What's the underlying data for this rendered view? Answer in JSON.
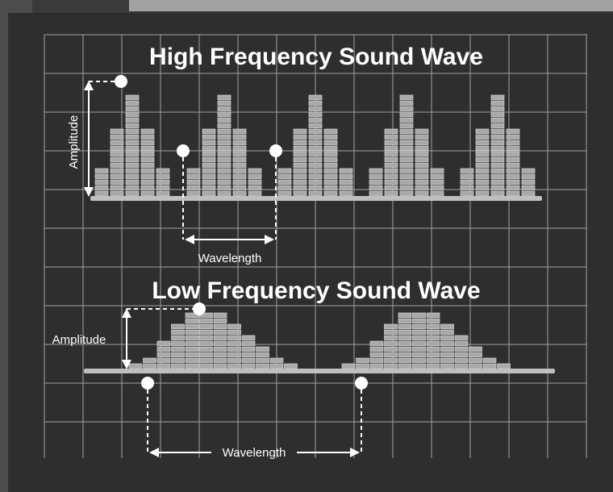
{
  "colors": {
    "background": "#3a3a3a",
    "panel": "#2e2e2e",
    "grid": "#c8c8c8",
    "bars": "#a9a9a9",
    "bar_lines": "#d8d8d8",
    "annotation": "#ffffff"
  },
  "high": {
    "title": "High Frequency Sound Wave",
    "amplitude_label": "Amplitude",
    "wavelength_label": "Wavelength"
  },
  "low": {
    "title": "Low Frequency Sound Wave",
    "amplitude_label": "Amplitude",
    "wavelength_label": "Wavelength"
  }
}
